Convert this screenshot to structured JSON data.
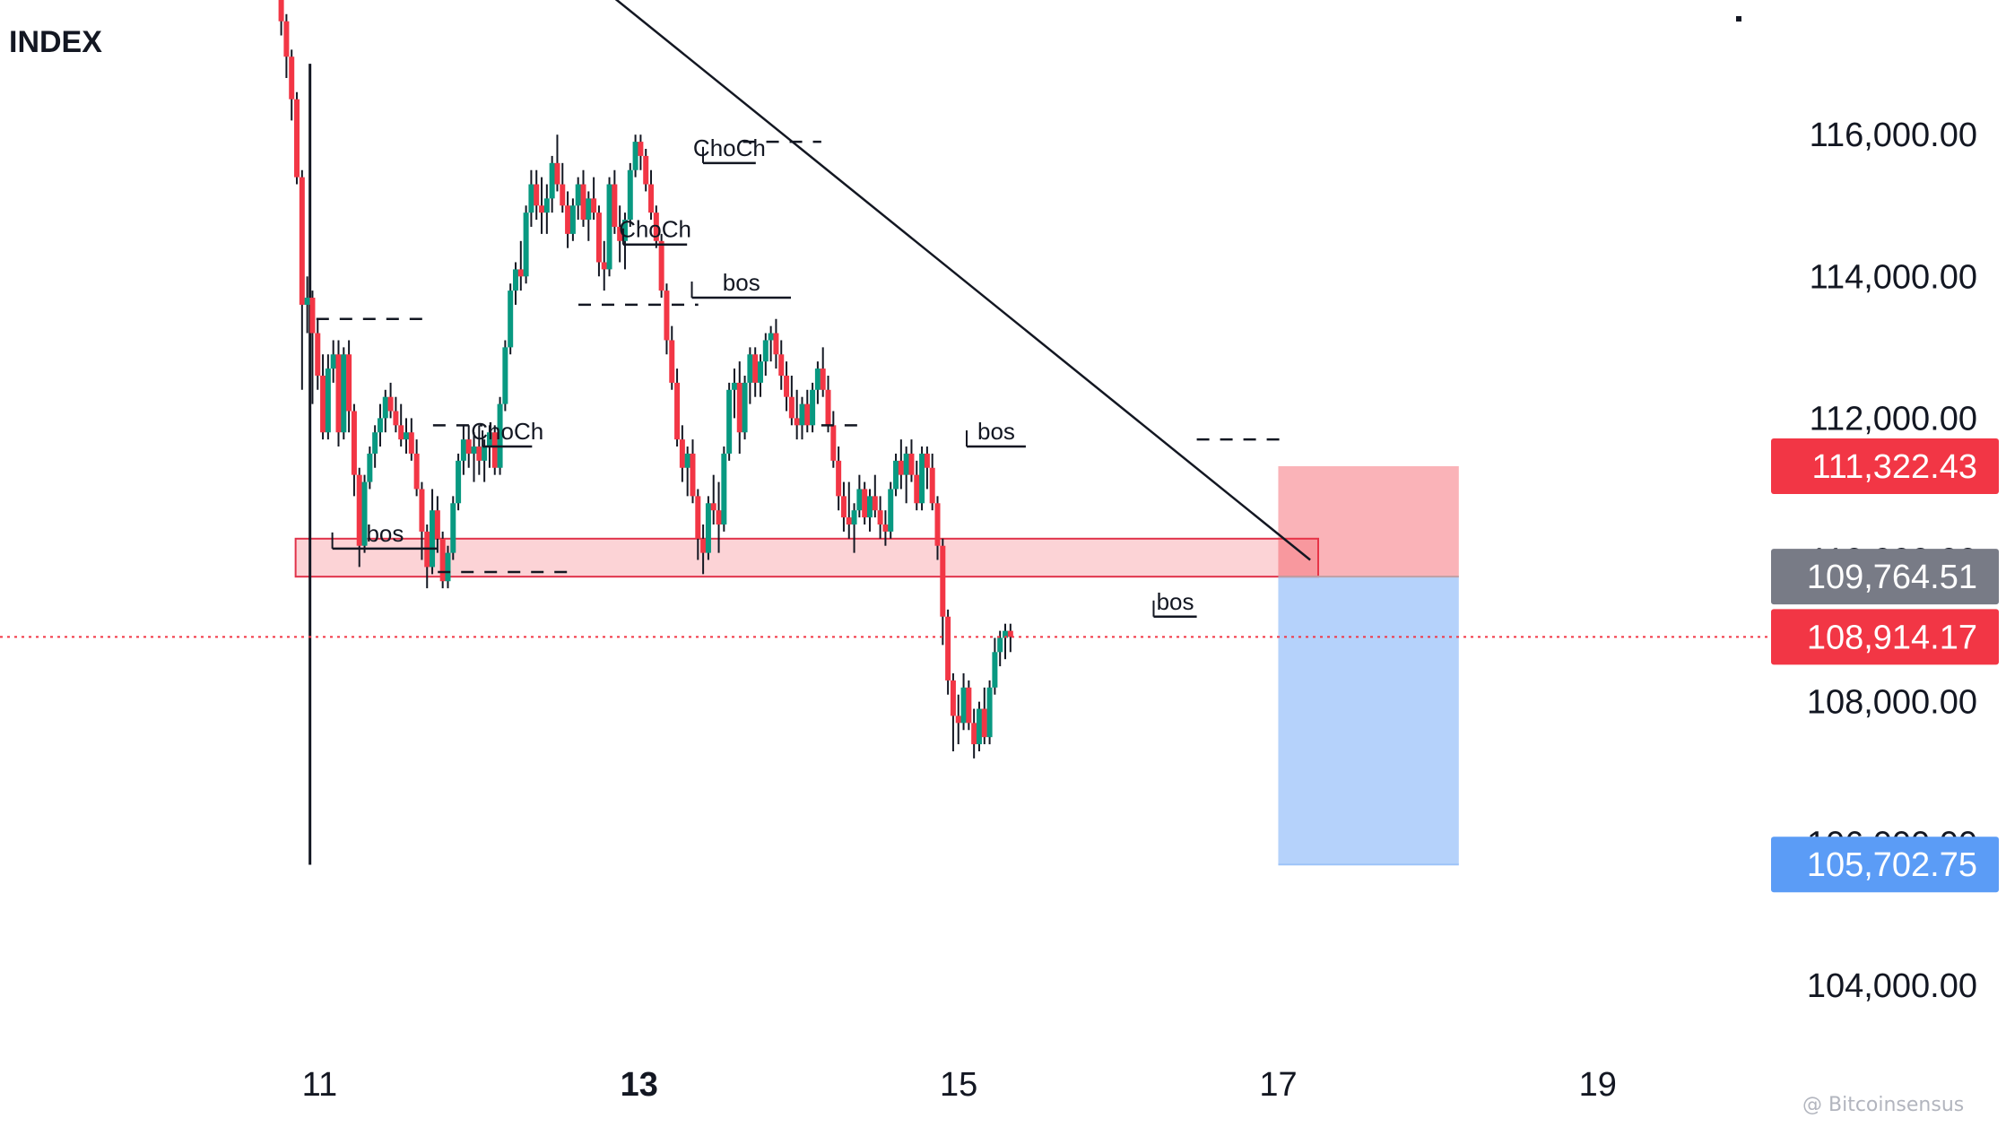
{
  "header": {
    "symbol": "INDEX"
  },
  "watermark": "@ Bitcoinsensus",
  "chart_data": {
    "type": "candlestick",
    "title": "",
    "xlabel": "",
    "ylabel": "",
    "x_ticks": [
      {
        "label": "11",
        "day": 11,
        "bold": false
      },
      {
        "label": "13",
        "day": 13,
        "bold": true
      },
      {
        "label": "15",
        "day": 15,
        "bold": false
      },
      {
        "label": "17",
        "day": 17,
        "bold": false
      },
      {
        "label": "19",
        "day": 19,
        "bold": false
      }
    ],
    "xlim": [
      9.0,
      20.0
    ],
    "y_ticks": [
      {
        "value": 116000,
        "label": "116,000.00"
      },
      {
        "value": 114000,
        "label": "114,000.00"
      },
      {
        "value": 112000,
        "label": "112,000.00"
      },
      {
        "value": 110000,
        "label": "110,000.00"
      },
      {
        "value": 108000,
        "label": "108,000.00"
      },
      {
        "value": 106000,
        "label": "106,000.00"
      },
      {
        "value": 104000,
        "label": "104,000.00"
      }
    ],
    "ylim": [
      103100,
      117900
    ],
    "price_badges": [
      {
        "value": 111322.43,
        "label": "111,322.43",
        "color": "#f23645",
        "kind": "stop"
      },
      {
        "value": 109764.51,
        "label": "109,764.51",
        "color": "#787b86",
        "kind": "entry"
      },
      {
        "value": 108914.17,
        "label": "108,914.17",
        "color": "#f23645",
        "kind": "last"
      },
      {
        "value": 105702.75,
        "label": "105,702.75",
        "color": "#5b9cf6",
        "kind": "target"
      }
    ],
    "last_price": 108914.17,
    "colors": {
      "up": "#089981",
      "down": "#f23645",
      "text": "#131722"
    },
    "start_day": 10.76,
    "day_step": 0.0326,
    "candles": [
      [
        118000,
        118000,
        117400,
        117600
      ],
      [
        117600,
        117700,
        116800,
        117100
      ],
      [
        117100,
        117200,
        116200,
        116500
      ],
      [
        116500,
        116600,
        115300,
        115400
      ],
      [
        115400,
        115500,
        112400,
        113600
      ],
      [
        113600,
        114000,
        113200,
        113700
      ],
      [
        113700,
        113800,
        112200,
        113200
      ],
      [
        113200,
        113400,
        112400,
        112600
      ],
      [
        112600,
        112900,
        111700,
        111800
      ],
      [
        111800,
        112900,
        111700,
        112700
      ],
      [
        112700,
        113100,
        112500,
        112900
      ],
      [
        112900,
        113100,
        111600,
        111800
      ],
      [
        111800,
        113000,
        111700,
        112900
      ],
      [
        112900,
        113100,
        111800,
        112100
      ],
      [
        112100,
        112200,
        110900,
        111200
      ],
      [
        111200,
        111300,
        109900,
        110200
      ],
      [
        110200,
        111200,
        110100,
        111100
      ],
      [
        111100,
        111600,
        111000,
        111500
      ],
      [
        111500,
        111900,
        111300,
        111800
      ],
      [
        111800,
        112200,
        111600,
        112000
      ],
      [
        112000,
        112400,
        111800,
        112300
      ],
      [
        112300,
        112500,
        112000,
        112100
      ],
      [
        112100,
        112300,
        111800,
        111900
      ],
      [
        111900,
        112200,
        111600,
        111700
      ],
      [
        111700,
        112000,
        111500,
        111800
      ],
      [
        111800,
        112000,
        111400,
        111500
      ],
      [
        111500,
        111700,
        110900,
        111000
      ],
      [
        111000,
        111100,
        110000,
        110400
      ],
      [
        110400,
        110500,
        109600,
        109900
      ],
      [
        109900,
        111000,
        109800,
        110700
      ],
      [
        110700,
        110900,
        110100,
        110300
      ],
      [
        110300,
        110400,
        109600,
        109700
      ],
      [
        109700,
        110200,
        109600,
        110100
      ],
      [
        110100,
        110900,
        110000,
        110800
      ],
      [
        110800,
        111500,
        110700,
        111400
      ],
      [
        111400,
        111900,
        111200,
        111700
      ],
      [
        111700,
        111900,
        111300,
        111500
      ],
      [
        111500,
        111800,
        111100,
        111600
      ],
      [
        111600,
        111900,
        111200,
        111400
      ],
      [
        111400,
        111700,
        111100,
        111600
      ],
      [
        111600,
        111900,
        111300,
        111800
      ],
      [
        111800,
        111900,
        111200,
        111300
      ],
      [
        111300,
        112300,
        111200,
        112200
      ],
      [
        112200,
        113100,
        112100,
        113000
      ],
      [
        113000,
        113900,
        112900,
        113800
      ],
      [
        113800,
        114200,
        113600,
        114100
      ],
      [
        114100,
        114500,
        113800,
        114000
      ],
      [
        114000,
        115000,
        113900,
        114900
      ],
      [
        114900,
        115500,
        114700,
        115300
      ],
      [
        115300,
        115500,
        114800,
        115000
      ],
      [
        115000,
        115400,
        114600,
        114900
      ],
      [
        114900,
        115300,
        114600,
        115100
      ],
      [
        115100,
        115700,
        114900,
        115600
      ],
      [
        115600,
        116000,
        115200,
        115300
      ],
      [
        115300,
        115600,
        114900,
        115000
      ],
      [
        115000,
        115200,
        114400,
        114600
      ],
      [
        114600,
        115100,
        114500,
        115000
      ],
      [
        115000,
        115400,
        114800,
        115300
      ],
      [
        115300,
        115500,
        114700,
        114800
      ],
      [
        114800,
        115200,
        114500,
        115100
      ],
      [
        115100,
        115400,
        114800,
        114900
      ],
      [
        114900,
        115000,
        114000,
        114200
      ],
      [
        114200,
        114500,
        113800,
        114100
      ],
      [
        114100,
        115400,
        114000,
        115300
      ],
      [
        115300,
        115500,
        114600,
        114700
      ],
      [
        114700,
        115000,
        114200,
        114500
      ],
      [
        114500,
        114900,
        114100,
        114800
      ],
      [
        114800,
        115600,
        114700,
        115500
      ],
      [
        115500,
        116000,
        115400,
        115900
      ],
      [
        115900,
        116000,
        115500,
        115700
      ],
      [
        115700,
        115800,
        115200,
        115300
      ],
      [
        115300,
        115500,
        114800,
        114900
      ],
      [
        114900,
        115000,
        114400,
        114500
      ],
      [
        114500,
        114600,
        113700,
        113800
      ],
      [
        113800,
        113900,
        112900,
        113100
      ],
      [
        113100,
        113300,
        112400,
        112500
      ],
      [
        112500,
        112700,
        111600,
        111700
      ],
      [
        111700,
        111900,
        111100,
        111300
      ],
      [
        111300,
        111600,
        110900,
        111500
      ],
      [
        111500,
        111700,
        110800,
        110900
      ],
      [
        110900,
        111000,
        110000,
        110300
      ],
      [
        110300,
        110500,
        109800,
        110100
      ],
      [
        110100,
        110900,
        110000,
        110800
      ],
      [
        110800,
        111200,
        110500,
        110700
      ],
      [
        110700,
        111100,
        110100,
        110500
      ],
      [
        110500,
        111600,
        110400,
        111500
      ],
      [
        111500,
        112500,
        111400,
        112400
      ],
      [
        112400,
        112700,
        112000,
        112500
      ],
      [
        112500,
        112800,
        111500,
        111800
      ],
      [
        111800,
        112600,
        111700,
        112500
      ],
      [
        112500,
        113000,
        112200,
        112900
      ],
      [
        112900,
        113000,
        112300,
        112500
      ],
      [
        112500,
        112900,
        112300,
        112800
      ],
      [
        112800,
        113200,
        112600,
        113100
      ],
      [
        113100,
        113300,
        112800,
        113200
      ],
      [
        113200,
        113400,
        112700,
        112900
      ],
      [
        112900,
        113100,
        112400,
        112600
      ],
      [
        112600,
        112800,
        112100,
        112300
      ],
      [
        112300,
        112600,
        111900,
        112000
      ],
      [
        112000,
        112400,
        111700,
        111900
      ],
      [
        111900,
        112300,
        111700,
        112200
      ],
      [
        112200,
        112400,
        111800,
        111900
      ],
      [
        111900,
        112500,
        111800,
        112400
      ],
      [
        112400,
        112800,
        112200,
        112700
      ],
      [
        112700,
        113000,
        112300,
        112400
      ],
      [
        112400,
        112600,
        111800,
        111900
      ],
      [
        111900,
        112100,
        111300,
        111400
      ],
      [
        111400,
        111600,
        110700,
        110900
      ],
      [
        110900,
        111100,
        110400,
        110600
      ],
      [
        110600,
        111100,
        110300,
        110500
      ],
      [
        110500,
        110800,
        110100,
        110700
      ],
      [
        110700,
        111200,
        110600,
        111000
      ],
      [
        111000,
        111100,
        110500,
        110600
      ],
      [
        110600,
        111000,
        110400,
        110900
      ],
      [
        110900,
        111200,
        110600,
        110700
      ],
      [
        110700,
        110900,
        110300,
        110500
      ],
      [
        110500,
        110700,
        110200,
        110400
      ],
      [
        110400,
        111100,
        110300,
        111000
      ],
      [
        111000,
        111500,
        110900,
        111400
      ],
      [
        111400,
        111700,
        111000,
        111200
      ],
      [
        111200,
        111600,
        110800,
        111500
      ],
      [
        111500,
        111700,
        111100,
        111200
      ],
      [
        111200,
        111400,
        110700,
        110800
      ],
      [
        110800,
        111600,
        110700,
        111500
      ],
      [
        111500,
        111600,
        111000,
        111300
      ],
      [
        111300,
        111500,
        110700,
        110800
      ],
      [
        110800,
        110900,
        110000,
        110200
      ],
      [
        110200,
        110300,
        108800,
        109200
      ],
      [
        109200,
        109300,
        108100,
        108300
      ],
      [
        108300,
        108400,
        107300,
        107800
      ],
      [
        107800,
        108100,
        107400,
        107700
      ],
      [
        107700,
        108400,
        107600,
        108200
      ],
      [
        108200,
        108300,
        107600,
        107700
      ],
      [
        107700,
        107900,
        107200,
        107400
      ],
      [
        107400,
        108000,
        107300,
        107900
      ],
      [
        107900,
        108200,
        107400,
        107500
      ],
      [
        107500,
        108300,
        107400,
        108200
      ],
      [
        108200,
        108900,
        108100,
        108700
      ],
      [
        108700,
        109000,
        108500,
        108900
      ],
      [
        108900,
        109100,
        108600,
        109000
      ],
      [
        109000,
        109100,
        108700,
        108914
      ]
    ],
    "zone": {
      "from_day": 10.85,
      "to_day": 17.25,
      "low": 109764,
      "high": 110300
    },
    "trendline": {
      "from_day": 12.75,
      "from_value": 118100,
      "to_day": 17.2,
      "to_value": 110000
    },
    "position": {
      "from_day": 17.0,
      "to_day": 18.13,
      "entry": 109764.51,
      "stop": 111322.43,
      "target": 105702.75
    },
    "structure": [
      {
        "type": "bos",
        "label": "bos",
        "from_day": 11.08,
        "to_day": 11.74,
        "value": 110160,
        "dashed": false
      },
      {
        "type": "level",
        "label": "",
        "from_day": 11.74,
        "to_day": 12.58,
        "value": 109830,
        "dashed": true
      },
      {
        "type": "choch",
        "label": "ChoCh",
        "from_day": 12.02,
        "to_day": 12.33,
        "value": 111600,
        "dashed": false
      },
      {
        "type": "level",
        "label": "",
        "from_day": 11.71,
        "to_day": 12.02,
        "value": 111900,
        "dashed": true
      },
      {
        "type": "level",
        "label": "",
        "from_day": 10.98,
        "to_day": 11.68,
        "value": 113400,
        "dashed": true
      },
      {
        "type": "level",
        "label": "",
        "from_day": 12.62,
        "to_day": 13.37,
        "value": 113600,
        "dashed": true
      },
      {
        "type": "choch",
        "label": "ChoCh",
        "from_day": 12.9,
        "to_day": 13.3,
        "value": 114450,
        "dashed": false
      },
      {
        "type": "bos",
        "label": "bos",
        "from_day": 13.33,
        "to_day": 13.95,
        "value": 113700,
        "dashed": false
      },
      {
        "type": "choch",
        "label": "ChoCh",
        "from_day": 13.4,
        "to_day": 13.73,
        "value": 115600,
        "dashed": false
      },
      {
        "type": "level",
        "label": "",
        "from_day": 13.65,
        "to_day": 14.14,
        "value": 115900,
        "dashed": true
      },
      {
        "type": "level",
        "label": "",
        "from_day": 14.14,
        "to_day": 14.43,
        "value": 111900,
        "dashed": true
      },
      {
        "type": "bos",
        "label": "bos",
        "from_day": 15.05,
        "to_day": 15.42,
        "value": 111600,
        "dashed": false
      },
      {
        "type": "bos",
        "label": "bos",
        "from_day": 16.22,
        "to_day": 16.49,
        "value": 109200,
        "dashed": false
      },
      {
        "type": "level",
        "label": "",
        "from_day": 16.49,
        "to_day": 17.05,
        "value": 111700,
        "dashed": true
      }
    ]
  }
}
